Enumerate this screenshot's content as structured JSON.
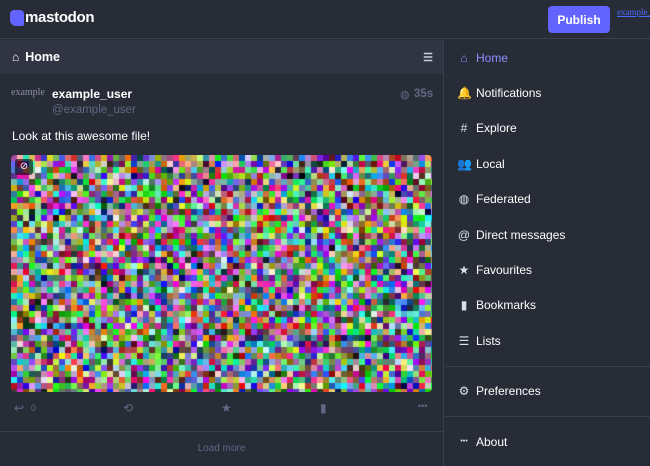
{
  "brand": {
    "name": "mastodon",
    "accent": "#6364ff"
  },
  "topbar": {
    "publish_label": "Publish",
    "account_link": "example_user"
  },
  "column": {
    "title": "Home",
    "icon": "home-icon",
    "settings_icon": "sliders-icon"
  },
  "status": {
    "avatar_alt": "example_user",
    "display_name": "example_user",
    "account": "@example_user",
    "visibility_icon": "globe-icon",
    "time": "35s",
    "content": "Look at this awesome file!",
    "media_hide_icon": "eye-slash-icon",
    "replies": "0"
  },
  "load_more": "Load more",
  "nav": {
    "items": [
      {
        "label": "Home",
        "icon": "home-icon",
        "glyph": "⌂",
        "active": true
      },
      {
        "label": "Notifications",
        "icon": "bell-icon",
        "glyph": "🔔"
      },
      {
        "label": "Explore",
        "icon": "hashtag-icon",
        "glyph": "#"
      },
      {
        "label": "Local",
        "icon": "users-icon",
        "glyph": "👥"
      },
      {
        "label": "Federated",
        "icon": "globe-icon",
        "glyph": "◍"
      },
      {
        "label": "Direct messages",
        "icon": "at-icon",
        "glyph": "@"
      },
      {
        "label": "Favourites",
        "icon": "star-icon",
        "glyph": "★"
      },
      {
        "label": "Bookmarks",
        "icon": "bookmark-icon",
        "glyph": "▮"
      },
      {
        "label": "Lists",
        "icon": "list-icon",
        "glyph": "☰"
      },
      {
        "label": "Preferences",
        "icon": "gear-icon",
        "glyph": "⚙"
      },
      {
        "label": "About",
        "icon": "ellipsis-icon",
        "glyph": "•••"
      }
    ]
  }
}
